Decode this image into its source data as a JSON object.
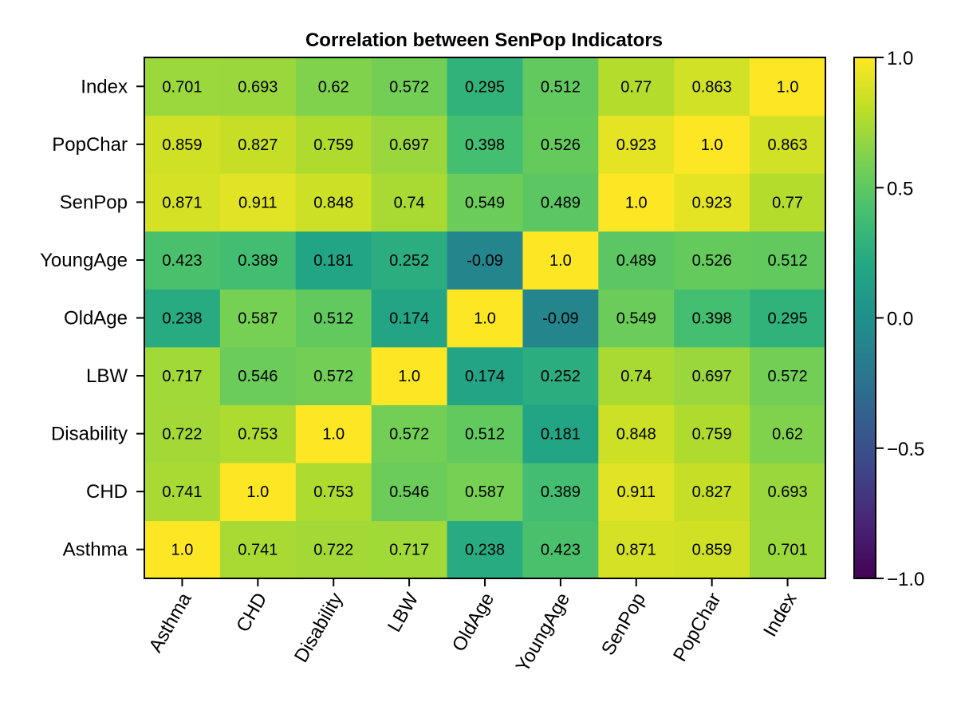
{
  "chart_data": {
    "type": "heatmap",
    "title": "Correlation between SenPop Indicators",
    "xlabel": "",
    "ylabel": "",
    "x_categories": [
      "Asthma",
      "CHD",
      "Disability",
      "LBW",
      "OldAge",
      "YoungAge",
      "SenPop",
      "PopChar",
      "Index"
    ],
    "y_categories": [
      "Asthma",
      "CHD",
      "Disability",
      "LBW",
      "OldAge",
      "YoungAge",
      "SenPop",
      "PopChar",
      "Index"
    ],
    "values": [
      [
        1.0,
        0.741,
        0.722,
        0.717,
        0.238,
        0.423,
        0.871,
        0.859,
        0.701
      ],
      [
        0.741,
        1.0,
        0.753,
        0.546,
        0.587,
        0.389,
        0.911,
        0.827,
        0.693
      ],
      [
        0.722,
        0.753,
        1.0,
        0.572,
        0.512,
        0.181,
        0.848,
        0.759,
        0.62
      ],
      [
        0.717,
        0.546,
        0.572,
        1.0,
        0.174,
        0.252,
        0.74,
        0.697,
        0.572
      ],
      [
        0.238,
        0.587,
        0.512,
        0.174,
        1.0,
        -0.09,
        0.549,
        0.398,
        0.295
      ],
      [
        0.423,
        0.389,
        0.181,
        0.252,
        -0.09,
        1.0,
        0.489,
        0.526,
        0.512
      ],
      [
        0.871,
        0.911,
        0.848,
        0.74,
        0.549,
        0.489,
        1.0,
        0.923,
        0.77
      ],
      [
        0.859,
        0.827,
        0.759,
        0.697,
        0.398,
        0.526,
        0.923,
        1.0,
        0.863
      ],
      [
        0.701,
        0.693,
        0.62,
        0.572,
        0.295,
        0.512,
        0.77,
        0.863,
        1.0
      ]
    ],
    "value_labels": [
      [
        "1.0",
        "0.741",
        "0.722",
        "0.717",
        "0.238",
        "0.423",
        "0.871",
        "0.859",
        "0.701"
      ],
      [
        "0.741",
        "1.0",
        "0.753",
        "0.546",
        "0.587",
        "0.389",
        "0.911",
        "0.827",
        "0.693"
      ],
      [
        "0.722",
        "0.753",
        "1.0",
        "0.572",
        "0.512",
        "0.181",
        "0.848",
        "0.759",
        "0.62"
      ],
      [
        "0.717",
        "0.546",
        "0.572",
        "1.0",
        "0.174",
        "0.252",
        "0.74",
        "0.697",
        "0.572"
      ],
      [
        "0.238",
        "0.587",
        "0.512",
        "0.174",
        "1.0",
        "-0.09",
        "0.549",
        "0.398",
        "0.295"
      ],
      [
        "0.423",
        "0.389",
        "0.181",
        "0.252",
        "-0.09",
        "1.0",
        "0.489",
        "0.526",
        "0.512"
      ],
      [
        "0.871",
        "0.911",
        "0.848",
        "0.74",
        "0.549",
        "0.489",
        "1.0",
        "0.923",
        "0.77"
      ],
      [
        "0.859",
        "0.827",
        "0.759",
        "0.697",
        "0.398",
        "0.526",
        "0.923",
        "1.0",
        "0.863"
      ],
      [
        "0.701",
        "0.693",
        "0.62",
        "0.572",
        "0.295",
        "0.512",
        "0.77",
        "0.863",
        "1.0"
      ]
    ],
    "y_order": "bottom-to-top",
    "colormap": "viridis",
    "colorbar": {
      "range": [
        -1.0,
        1.0
      ],
      "ticks": [
        1.0,
        0.5,
        0.0,
        -0.5,
        -1.0
      ],
      "tick_labels": [
        "1.0",
        "0.5",
        "0.0",
        "−0.5",
        "−1.0"
      ],
      "position": "right"
    },
    "grid": false,
    "x_tick_rotation_deg": -60
  }
}
